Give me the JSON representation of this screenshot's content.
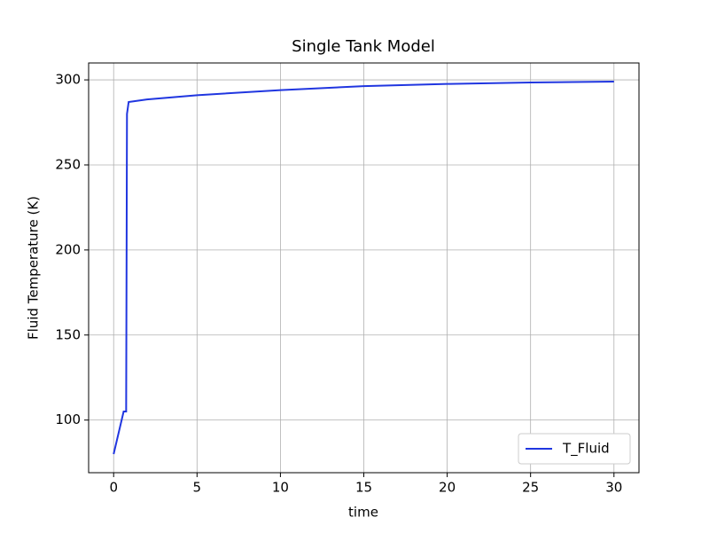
{
  "chart_data": {
    "type": "line",
    "title": "Single Tank Model",
    "x_label": "time",
    "y_label": "Fluid Temperature (K)",
    "x": [
      0,
      0.6,
      0.75,
      0.8,
      0.9,
      2,
      5,
      10,
      15,
      20,
      25,
      30
    ],
    "series": [
      {
        "name": "T_Fluid",
        "color": "#2036e0",
        "values": [
          80,
          105,
          105,
          280,
          287,
          288.5,
          291,
          294,
          296.3,
          297.6,
          298.5,
          299
        ]
      }
    ],
    "xlim": [
      -1.5,
      31.5
    ],
    "xticks": [
      0,
      5,
      10,
      15,
      20,
      25,
      30
    ],
    "ylim": [
      69.05,
      309.95
    ],
    "yticks": [
      100,
      150,
      200,
      250,
      300
    ],
    "grid": true,
    "legend": "lower right"
  }
}
